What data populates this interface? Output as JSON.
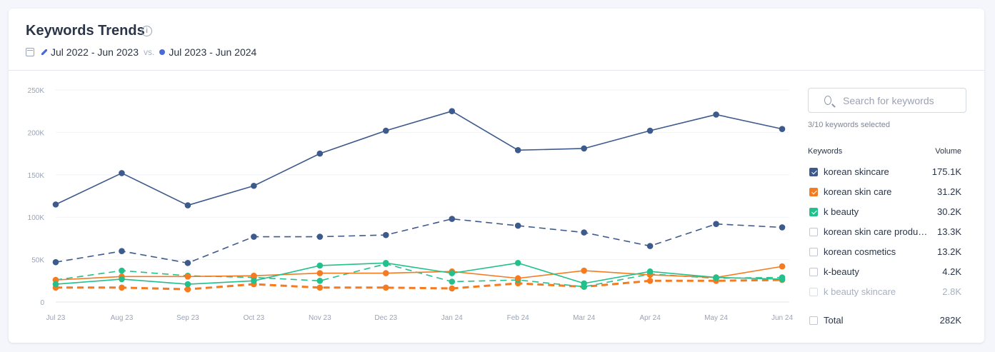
{
  "card": {
    "title": "Keywords Trends",
    "info_icon": "info-icon",
    "period_prev": "Jul 2022 - Jun 2023",
    "period_vs": "vs.",
    "period_curr": "Jul 2023 - Jun 2024"
  },
  "search": {
    "placeholder": "Search for keywords"
  },
  "selection": {
    "text": "3/10 keywords selected"
  },
  "keywords": {
    "header_keywords": "Keywords",
    "header_volume": "Volume",
    "items": [
      {
        "label": "korean skincare",
        "volume": "175.1K",
        "checked": true,
        "color": "#3d5a8c"
      },
      {
        "label": "korean skin care",
        "volume": "31.2K",
        "checked": true,
        "color": "#f47b20"
      },
      {
        "label": "k beauty",
        "volume": "30.2K",
        "checked": true,
        "color": "#22c08c"
      },
      {
        "label": "korean skin care products",
        "volume": "13.3K",
        "checked": false,
        "color": "#c0c6d2"
      },
      {
        "label": "korean cosmetics",
        "volume": "13.2K",
        "checked": false,
        "color": "#c0c6d2"
      },
      {
        "label": "k-beauty",
        "volume": "4.2K",
        "checked": false,
        "color": "#c0c6d2"
      },
      {
        "label": "k beauty skincare",
        "volume": "2.8K",
        "checked": false,
        "color": "#d9dde5"
      }
    ],
    "total_label": "Total",
    "total_volume": "282K"
  },
  "chart_data": {
    "type": "line",
    "title": "Keywords Trends",
    "categories": [
      "Jul 23",
      "Aug 23",
      "Sep 23",
      "Oct 23",
      "Nov 23",
      "Dec 23",
      "Jan 24",
      "Feb 24",
      "Mar 24",
      "Apr 24",
      "May 24",
      "Jun 24"
    ],
    "yticks": [
      "0",
      "50K",
      "100K",
      "150K",
      "200K",
      "250K"
    ],
    "ylim": [
      0,
      250000
    ],
    "series": [
      {
        "name": "korean skincare (Jul 2023 - Jun 2024)",
        "color": "#3d5a8c",
        "dashed": false,
        "values": [
          115000,
          152000,
          114000,
          137000,
          175000,
          202000,
          225000,
          179000,
          181000,
          202000,
          221000,
          204000
        ]
      },
      {
        "name": "korean skincare (Jul 2022 - Jun 2023)",
        "color": "#3d5a8c",
        "dashed": true,
        "values": [
          47000,
          60000,
          46000,
          77000,
          77000,
          79000,
          98000,
          90000,
          82000,
          66000,
          92000,
          88000
        ]
      },
      {
        "name": "korean skin care (Jul 2023 - Jun 2024)",
        "color": "#f47b20",
        "dashed": false,
        "values": [
          26000,
          30000,
          30000,
          31000,
          34000,
          34000,
          36000,
          28000,
          37000,
          32000,
          29000,
          42000
        ]
      },
      {
        "name": "korean skin care (Jul 2022 - Jun 2023)",
        "color": "#f47b20",
        "dashed": true,
        "values": [
          17000,
          17000,
          15000,
          21000,
          17000,
          17000,
          16000,
          22000,
          18000,
          25000,
          25000,
          26000
        ]
      },
      {
        "name": "k beauty (Jul 2023 - Jun 2024)",
        "color": "#22c08c",
        "dashed": false,
        "values": [
          21000,
          27000,
          21000,
          25000,
          43000,
          46000,
          34000,
          46000,
          22000,
          36000,
          29000,
          27000
        ]
      },
      {
        "name": "k beauty (Jul 2022 - Jun 2023)",
        "color": "#22c08c",
        "dashed": true,
        "values": [
          26000,
          37000,
          31000,
          29000,
          25000,
          45000,
          24000,
          26000,
          18000,
          33000,
          28000,
          29000
        ]
      }
    ]
  }
}
